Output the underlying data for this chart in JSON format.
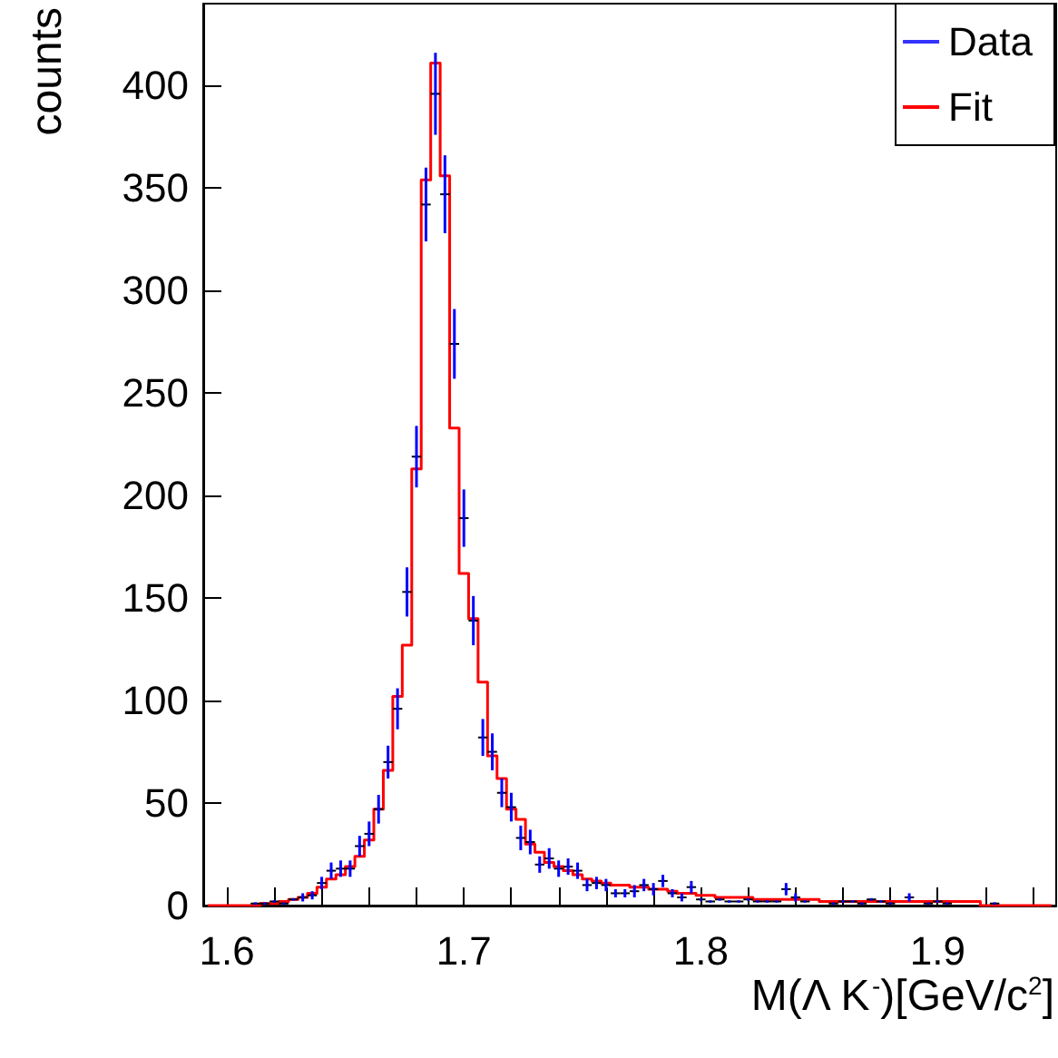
{
  "chart_data": {
    "type": "scatter",
    "xlabel": "M(Λ K$^{-}$)[GeV/c$^{2}$]",
    "ylabel": "counts",
    "x": [
      1.592,
      1.596,
      1.6,
      1.604,
      1.608,
      1.612,
      1.616,
      1.62,
      1.624,
      1.628,
      1.632,
      1.636,
      1.64,
      1.644,
      1.648,
      1.652,
      1.656,
      1.66,
      1.664,
      1.668,
      1.672,
      1.676,
      1.68,
      1.684,
      1.688,
      1.692,
      1.696,
      1.7,
      1.704,
      1.708,
      1.712,
      1.716,
      1.72,
      1.724,
      1.728,
      1.732,
      1.736,
      1.74,
      1.744,
      1.748,
      1.752,
      1.756,
      1.76,
      1.764,
      1.768,
      1.772,
      1.776,
      1.78,
      1.784,
      1.788,
      1.792,
      1.796,
      1.8,
      1.804,
      1.808,
      1.812,
      1.816,
      1.82,
      1.824,
      1.828,
      1.832,
      1.836,
      1.84,
      1.844,
      1.848,
      1.852,
      1.856,
      1.86,
      1.864,
      1.868,
      1.872,
      1.876,
      1.88,
      1.884,
      1.888,
      1.892,
      1.896,
      1.9,
      1.904,
      1.908,
      1.912,
      1.916,
      1.92,
      1.924,
      1.928,
      1.932,
      1.936,
      1.94,
      1.944,
      1.948
    ],
    "series": [
      {
        "name": "Data",
        "color": "#0000ff",
        "marker": "square",
        "values": [
          null,
          null,
          null,
          null,
          null,
          1,
          1,
          2,
          1,
          3,
          4,
          5,
          11,
          17,
          18,
          18,
          29,
          35,
          47,
          70,
          96,
          153,
          219,
          342,
          396,
          347,
          274,
          189,
          139,
          82,
          75,
          55,
          48,
          33,
          31,
          20,
          23,
          18,
          19,
          17,
          10,
          11,
          10,
          6,
          6,
          7,
          10,
          8,
          12,
          6,
          4,
          9,
          3,
          2,
          3,
          2,
          2,
          3,
          2,
          2,
          2,
          8,
          4,
          2,
          null,
          null,
          1,
          2,
          2,
          1,
          3,
          2,
          1,
          null,
          4,
          null,
          1,
          2,
          1,
          null,
          null,
          null,
          null,
          1,
          null,
          null,
          null,
          null,
          null,
          null
        ],
        "errors": [
          null,
          null,
          null,
          null,
          null,
          null,
          null,
          null,
          null,
          null,
          2,
          2,
          3,
          4,
          4,
          4,
          5,
          6,
          7,
          8,
          10,
          12,
          15,
          18,
          20,
          19,
          17,
          14,
          12,
          9,
          9,
          7,
          7,
          6,
          6,
          4,
          5,
          4,
          4,
          4,
          3,
          3,
          3,
          2,
          2,
          3,
          3,
          3,
          3,
          2,
          2,
          3,
          null,
          null,
          null,
          null,
          null,
          null,
          null,
          null,
          null,
          3,
          2,
          null,
          null,
          null,
          null,
          null,
          null,
          null,
          null,
          null,
          null,
          null,
          2,
          null,
          null,
          null,
          null,
          null,
          null,
          null,
          null,
          null,
          null,
          null,
          null,
          null,
          null,
          null
        ],
        "xerrors": [
          null,
          null,
          null,
          null,
          null,
          0.002,
          0.002,
          0.002,
          0.002,
          0.002,
          0.002,
          0.002,
          0.002,
          0.002,
          0.002,
          0.002,
          0.002,
          0.002,
          0.002,
          0.002,
          0.002,
          0.002,
          0.002,
          0.002,
          0.002,
          0.002,
          0.002,
          0.002,
          0.002,
          0.002,
          0.002,
          0.002,
          0.002,
          0.002,
          0.002,
          0.002,
          0.002,
          0.002,
          0.002,
          0.002,
          0.002,
          0.002,
          0.002,
          0.002,
          0.002,
          0.002,
          0.002,
          0.002,
          0.002,
          0.002,
          0.002,
          0.002,
          0.002,
          0.002,
          0.002,
          0.002,
          0.002,
          0.002,
          0.002,
          0.002,
          0.002,
          0.002,
          0.002,
          0.002,
          null,
          null,
          0.002,
          0.002,
          0.002,
          0.002,
          0.002,
          0.002,
          0.002,
          null,
          0.002,
          null,
          0.002,
          0.002,
          0.002,
          null,
          null,
          null,
          null,
          0.002,
          null,
          null,
          null,
          null,
          null,
          null
        ]
      },
      {
        "name": "Fit",
        "type": "step",
        "color": "#ff0000",
        "values": [
          0,
          0,
          0,
          0,
          0,
          0,
          1,
          1,
          2,
          3,
          4,
          6,
          9,
          13,
          15,
          19,
          24,
          32,
          47,
          66,
          102,
          127,
          213,
          354,
          411,
          356,
          233,
          162,
          140,
          109,
          73,
          62,
          47,
          42,
          30,
          26,
          21,
          19,
          17,
          15,
          13,
          12,
          11,
          10,
          10,
          9,
          9,
          8,
          8,
          7,
          6,
          6,
          5,
          5,
          4,
          4,
          4,
          4,
          3,
          3,
          3,
          3,
          3,
          3,
          3,
          2,
          2,
          2,
          2,
          2,
          2,
          2,
          2,
          2,
          2,
          2,
          2,
          2,
          2,
          2,
          2,
          2,
          0,
          0,
          0,
          0,
          0,
          0,
          0,
          0
        ]
      }
    ],
    "xlim": [
      1.59,
      1.95
    ],
    "xticks": [
      {
        "value": 1.6,
        "label": "1.6"
      },
      {
        "value": 1.62,
        "label": null
      },
      {
        "value": 1.64,
        "label": null
      },
      {
        "value": 1.66,
        "label": null
      },
      {
        "value": 1.68,
        "label": null
      },
      {
        "value": 1.7,
        "label": "1.7"
      },
      {
        "value": 1.72,
        "label": null
      },
      {
        "value": 1.74,
        "label": null
      },
      {
        "value": 1.76,
        "label": null
      },
      {
        "value": 1.78,
        "label": null
      },
      {
        "value": 1.8,
        "label": "1.8"
      },
      {
        "value": 1.82,
        "label": null
      },
      {
        "value": 1.84,
        "label": null
      },
      {
        "value": 1.86,
        "label": null
      },
      {
        "value": 1.88,
        "label": null
      },
      {
        "value": 1.9,
        "label": "1.9"
      },
      {
        "value": 1.92,
        "label": null
      },
      {
        "value": 1.94,
        "label": null
      }
    ],
    "ylim": [
      0,
      440
    ],
    "yticks": [
      0,
      50,
      100,
      150,
      200,
      250,
      300,
      350,
      400
    ],
    "grid": false,
    "legend": "top right"
  }
}
